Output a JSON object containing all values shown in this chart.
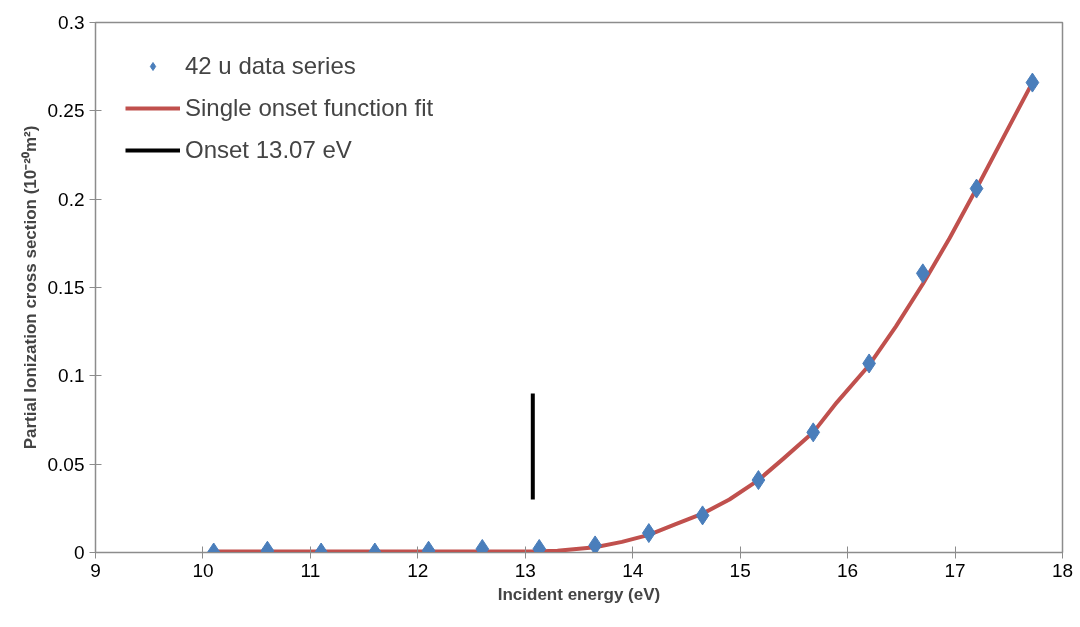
{
  "chart_data": {
    "type": "scatter",
    "xlabel": "Incident energy (eV)",
    "ylabel": "Partial Ionization cross section (10⁻²⁰m²)",
    "xlim": [
      9,
      18
    ],
    "xticks": [
      9,
      10,
      11,
      12,
      13,
      14,
      15,
      16,
      17,
      18
    ],
    "ylim": [
      0,
      0.3
    ],
    "yticks": [
      0,
      0.05,
      0.1,
      0.15,
      0.2,
      0.25,
      0.3
    ],
    "grid": false,
    "legend": "top left",
    "series": [
      {
        "name": "42 u data series",
        "marker": "diamond",
        "color": "#4a7ebb",
        "x": [
          10.1,
          10.6,
          11.1,
          11.6,
          12.1,
          12.6,
          13.13,
          13.65,
          14.15,
          14.65,
          15.17,
          15.68,
          16.2,
          16.7,
          17.2,
          17.72
        ],
        "values": [
          0,
          0.001,
          0,
          0,
          0.001,
          0.002,
          0.002,
          0.004,
          0.011,
          0.021,
          0.041,
          0.068,
          0.107,
          0.158,
          0.206,
          0.266
        ]
      },
      {
        "name": "Single onset function fit",
        "type": "line",
        "color": "#c0504d",
        "x": [
          10.1,
          13.07,
          13.3,
          13.65,
          13.9,
          14.15,
          14.4,
          14.65,
          14.9,
          15.17,
          15.4,
          15.68,
          15.9,
          16.2,
          16.45,
          16.7,
          16.95,
          17.2,
          17.45,
          17.72
        ],
        "values": [
          0.0005,
          0.0005,
          0.001,
          0.003,
          0.006,
          0.01,
          0.016,
          0.022,
          0.03,
          0.041,
          0.053,
          0.068,
          0.085,
          0.106,
          0.128,
          0.152,
          0.178,
          0.206,
          0.235,
          0.266
        ]
      },
      {
        "name": "Onset 13.07 eV",
        "type": "line",
        "color": "#000000",
        "x": [
          13.07,
          13.07
        ],
        "values": [
          0.03,
          0.09
        ]
      }
    ]
  }
}
